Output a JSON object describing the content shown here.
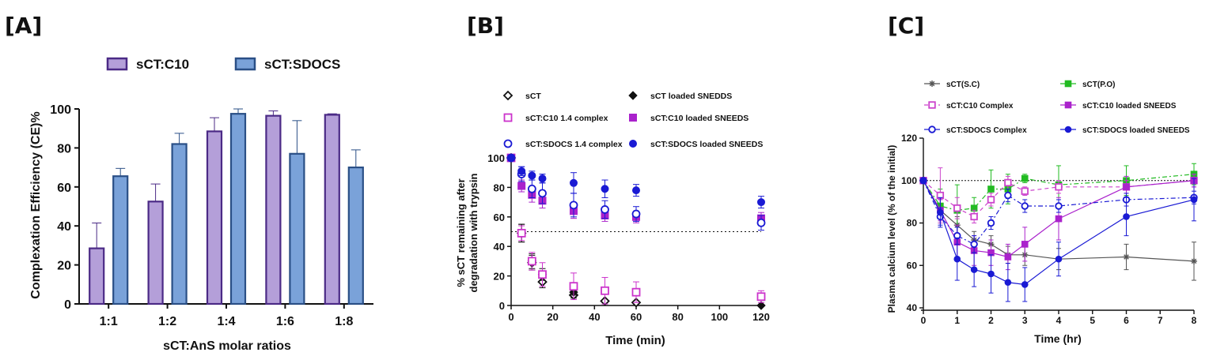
{
  "panels": [
    "[A]",
    "[B]",
    "[C]"
  ],
  "chart_data": [
    {
      "type": "bar",
      "categories": [
        "1:1",
        "1:2",
        "1:4",
        "1:6",
        "1:8"
      ],
      "series": [
        {
          "name": "sCT:C10",
          "values": [
            28.5,
            52.5,
            88.5,
            96.5,
            97.0
          ],
          "errors": [
            13,
            9,
            7,
            2.5,
            0.5
          ]
        },
        {
          "name": "sCT:SDOCS",
          "values": [
            65.5,
            82.0,
            97.5,
            77.0,
            70.0
          ],
          "errors": [
            4,
            5.5,
            2.5,
            17,
            9
          ]
        }
      ],
      "colors": {
        "sCT:C10": "#b49fd9",
        "sCT:SDOCS": "#7aa2d9",
        "edge_C10": "#4b2a86",
        "edge_SDOCS": "#2a4f86"
      },
      "xlabel": "sCT:AnS molar ratios",
      "ylabel": "Complexation Efficiency (CE)%",
      "ylim": [
        0,
        100
      ],
      "yticks": [
        "0",
        "20",
        "40",
        "60",
        "80",
        "100"
      ],
      "legend": "top"
    },
    {
      "type": "scatter",
      "xlabel": "Time (min)",
      "ylabel_line1": "% sCT remaining after",
      "ylabel_line2": "degradation with trypsin",
      "xlim": [
        0,
        120
      ],
      "ylim": [
        0,
        100
      ],
      "xticks": [
        "0",
        "20",
        "40",
        "60",
        "80",
        "100",
        "120"
      ],
      "yticks": [
        "0",
        "20",
        "40",
        "60",
        "80",
        "100"
      ],
      "reference_line": 50,
      "legend": "top",
      "series": [
        {
          "name": "sCT",
          "marker": "diamond-open",
          "color": "#111111",
          "x": [
            0,
            5,
            10,
            15,
            30,
            45,
            60
          ],
          "y": [
            100,
            49,
            29,
            16,
            7,
            3,
            2
          ],
          "err": [
            0,
            6,
            5,
            4,
            2,
            1,
            1
          ]
        },
        {
          "name": "sCT loaded SNEDDS",
          "marker": "diamond",
          "color": "#111111",
          "x": [
            0,
            5,
            10,
            15,
            30,
            120
          ],
          "y": [
            100,
            49,
            30,
            21,
            9,
            0
          ],
          "err": [
            0,
            6,
            5,
            4,
            2,
            0
          ]
        },
        {
          "name": "sCT:C10 1.4 complex",
          "marker": "square-open",
          "color": "#cc33cc",
          "x": [
            0,
            5,
            10,
            15,
            30,
            45,
            60,
            120
          ],
          "y": [
            100,
            49,
            30,
            21,
            13,
            10,
            9,
            6
          ],
          "err": [
            0,
            5,
            6,
            8,
            9,
            9,
            7,
            4
          ]
        },
        {
          "name": "sCT:C10 loaded SNEEDS",
          "marker": "square",
          "color": "#aa22cc",
          "x": [
            0,
            5,
            10,
            15,
            30,
            45,
            60,
            120
          ],
          "y": [
            100,
            81,
            75,
            71,
            64,
            61,
            60,
            59
          ],
          "err": [
            0,
            4,
            5,
            5,
            5,
            4,
            4,
            4
          ]
        },
        {
          "name": "sCT:SDOCS 1.4 complex",
          "marker": "circle-open",
          "color": "#1a1ad4",
          "x": [
            0,
            5,
            10,
            15,
            30,
            45,
            60,
            120
          ],
          "y": [
            100,
            89,
            79,
            76,
            68,
            65,
            62,
            56
          ],
          "err": [
            0,
            5,
            6,
            7,
            8,
            6,
            5,
            5
          ]
        },
        {
          "name": "sCT:SDOCS loaded SNEEDS",
          "marker": "circle",
          "color": "#1a1ad4",
          "x": [
            0,
            5,
            10,
            15,
            30,
            45,
            60,
            120
          ],
          "y": [
            100,
            91,
            88,
            86,
            83,
            79,
            78,
            70
          ],
          "err": [
            0,
            3,
            3,
            3,
            7,
            6,
            4,
            4
          ]
        }
      ]
    },
    {
      "type": "line",
      "xlabel": "Time (hr)",
      "ylabel": "Plasma calcium level (% of the initial)",
      "xlim": [
        0,
        8
      ],
      "ylim": [
        40,
        120
      ],
      "xticks": [
        "0",
        "1",
        "2",
        "3",
        "4",
        "5",
        "6",
        "7",
        "8"
      ],
      "yticks": [
        "40",
        "60",
        "80",
        "100",
        "120"
      ],
      "reference_line": 100,
      "legend": "top",
      "series": [
        {
          "name": "sCT(S.C)",
          "marker": "star",
          "color": "#555555",
          "dash": "none",
          "x": [
            0,
            0.5,
            1,
            1.5,
            2,
            2.5,
            3,
            4,
            6,
            8
          ],
          "y": [
            100,
            86,
            79,
            72,
            70,
            65,
            65,
            63,
            64,
            62
          ],
          "err": [
            0,
            3,
            4,
            4,
            4,
            4,
            5,
            5,
            6,
            9
          ]
        },
        {
          "name": "sCT(P.O)",
          "marker": "square",
          "color": "#22bb22",
          "dash": "6,3,2,3",
          "x": [
            0,
            0.5,
            1,
            1.5,
            2,
            2.5,
            3,
            4,
            6,
            8
          ],
          "y": [
            100,
            88,
            86,
            87,
            96,
            96,
            101,
            98,
            100,
            103
          ],
          "err": [
            0,
            8,
            12,
            5,
            9,
            7,
            2,
            9,
            7,
            5
          ]
        },
        {
          "name": "sCT:C10 Complex",
          "marker": "square-open",
          "color": "#cc44cc",
          "dash": "5,4",
          "x": [
            0,
            0.5,
            1,
            1.5,
            2,
            2.5,
            3,
            4,
            6,
            8
          ],
          "y": [
            100,
            93,
            87,
            83,
            91,
            99,
            95,
            97,
            97,
            100
          ],
          "err": [
            0,
            13,
            5,
            3,
            3,
            3,
            2,
            3,
            3,
            3
          ]
        },
        {
          "name": "sCT:C10 loaded SNEEDS",
          "marker": "square",
          "color": "#aa22cc",
          "dash": "none",
          "x": [
            0,
            0.5,
            1,
            1.5,
            2,
            2.5,
            3,
            4,
            6,
            8
          ],
          "y": [
            100,
            86,
            71,
            67,
            66,
            64,
            70,
            82,
            97,
            100
          ],
          "err": [
            0,
            5,
            8,
            7,
            6,
            6,
            8,
            10,
            5,
            3
          ]
        },
        {
          "name": "sCT:SDOCS Complex",
          "marker": "circle-open",
          "color": "#1a1ad4",
          "dash": "6,3,2,3",
          "x": [
            0,
            0.5,
            1,
            1.5,
            2,
            2.5,
            3,
            4,
            6,
            8
          ],
          "y": [
            100,
            83,
            74,
            70,
            80,
            93,
            88,
            88,
            91,
            92
          ],
          "err": [
            0,
            4,
            4,
            4,
            3,
            3,
            3,
            3,
            3,
            3
          ]
        },
        {
          "name": "sCT:SDOCS loaded SNEEDS",
          "marker": "circle",
          "color": "#1a1ad4",
          "dash": "none",
          "x": [
            0,
            0.5,
            1,
            1.5,
            2,
            2.5,
            3,
            4,
            6,
            8
          ],
          "y": [
            100,
            85,
            63,
            58,
            56,
            52,
            51,
            63,
            83,
            91
          ],
          "err": [
            0,
            7,
            10,
            8,
            9,
            9,
            8,
            8,
            9,
            10
          ]
        }
      ]
    }
  ]
}
